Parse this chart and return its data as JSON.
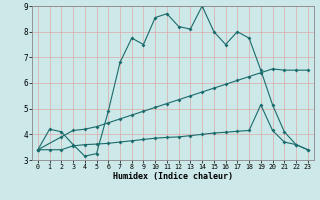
{
  "xlabel": "Humidex (Indice chaleur)",
  "bg_color": "#cce8e8",
  "grid_color": "#aacccc",
  "line_color": "#1a6b6b",
  "xlim": [
    -0.5,
    23.5
  ],
  "ylim": [
    3,
    9
  ],
  "xticks": [
    0,
    1,
    2,
    3,
    4,
    5,
    6,
    7,
    8,
    9,
    10,
    11,
    12,
    13,
    14,
    15,
    16,
    17,
    18,
    19,
    20,
    21,
    22,
    23
  ],
  "yticks": [
    3,
    4,
    5,
    6,
    7,
    8,
    9
  ],
  "line1_x": [
    0,
    1,
    2,
    3,
    4,
    5,
    6,
    7,
    8,
    9,
    10,
    11,
    12,
    13,
    14,
    15,
    16,
    17,
    18,
    19,
    20,
    21,
    22,
    23
  ],
  "line1_y": [
    3.4,
    4.2,
    4.1,
    3.6,
    3.15,
    3.25,
    4.9,
    6.8,
    7.75,
    7.5,
    8.55,
    8.7,
    8.2,
    8.1,
    9.0,
    8.0,
    7.5,
    8.0,
    7.75,
    6.5,
    5.15,
    4.1,
    3.6,
    3.4
  ],
  "line2_x": [
    0,
    2,
    3,
    4,
    5,
    6,
    7,
    8,
    9,
    10,
    11,
    12,
    13,
    14,
    15,
    16,
    17,
    18,
    19,
    20,
    21,
    22,
    23
  ],
  "line2_y": [
    3.4,
    3.9,
    4.15,
    4.2,
    4.3,
    4.45,
    4.6,
    4.75,
    4.9,
    5.05,
    5.2,
    5.35,
    5.5,
    5.65,
    5.8,
    5.95,
    6.1,
    6.25,
    6.4,
    6.55,
    6.5,
    6.5,
    6.5
  ],
  "line3_x": [
    0,
    1,
    2,
    3,
    4,
    5,
    6,
    7,
    8,
    9,
    10,
    11,
    12,
    13,
    14,
    15,
    16,
    17,
    18,
    19,
    20,
    21,
    22,
    23
  ],
  "line3_y": [
    3.4,
    3.4,
    3.4,
    3.55,
    3.6,
    3.62,
    3.65,
    3.7,
    3.75,
    3.8,
    3.85,
    3.88,
    3.9,
    3.95,
    4.0,
    4.05,
    4.08,
    4.12,
    4.15,
    5.15,
    4.15,
    3.7,
    3.6,
    3.4
  ]
}
